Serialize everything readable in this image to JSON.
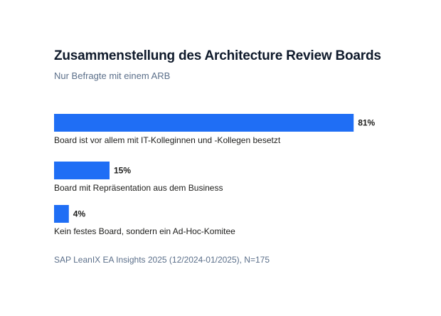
{
  "chart_data": {
    "type": "bar",
    "orientation": "horizontal",
    "title": "Zusammenstellung des Architecture Review Boards",
    "subtitle": "Nur Befragte mit einem ARB",
    "categories": [
      "Board ist vor allem mit IT-Kolleginnen und -Kollegen besetzt",
      "Board mit Repräsentation aus dem Business",
      "Kein festes Board, sondern ein Ad-Hoc-Komitee"
    ],
    "values": [
      81,
      15,
      4
    ],
    "value_labels": [
      "81%",
      "15%",
      "4%"
    ],
    "unit": "%",
    "xlim": [
      0,
      100
    ],
    "grid": false,
    "legend": "none",
    "bar_color": "#1f6ef5",
    "source": "SAP LeanIX EA Insights 2025 (12/2024-01/2025), N=175"
  }
}
